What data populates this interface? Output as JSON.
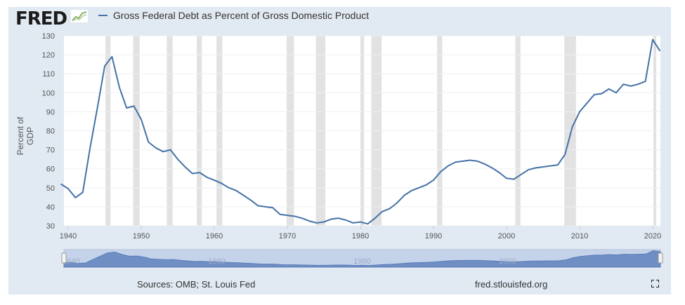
{
  "header": {
    "logo": "FRED",
    "legend_label": "Gross Federal Debt as Percent of Gross Domestic Product"
  },
  "footer": {
    "sources": "Sources: OMB; St. Louis Fed",
    "site": "fred.stlouisfed.org"
  },
  "colors": {
    "line": "#4572a7",
    "recession": "#e2e2e2",
    "panel": "#e1e9f2",
    "navigator": "#6f8fc4"
  },
  "chart_data": {
    "type": "line",
    "title": "Gross Federal Debt as Percent of Gross Domestic Product",
    "xlabel": "",
    "ylabel": "Percent of GDP",
    "xlim": [
      1939,
      2021
    ],
    "ylim": [
      30,
      130
    ],
    "yticks": [
      30,
      40,
      50,
      60,
      70,
      80,
      90,
      100,
      110,
      120,
      130
    ],
    "xticks": [
      1940,
      1950,
      1960,
      1970,
      1980,
      1990,
      2000,
      2010,
      2020
    ],
    "navigator_ticks": [
      1940,
      1960,
      1980,
      2000
    ],
    "grid": true,
    "legend_position": "top-left",
    "series": [
      {
        "name": "Gross Federal Debt as Percent of Gross Domestic Product",
        "x": [
          1939,
          1940,
          1941,
          1942,
          1943,
          1944,
          1945,
          1946,
          1947,
          1948,
          1949,
          1950,
          1951,
          1952,
          1953,
          1954,
          1955,
          1956,
          1957,
          1958,
          1959,
          1960,
          1961,
          1962,
          1963,
          1964,
          1965,
          1966,
          1967,
          1968,
          1969,
          1970,
          1971,
          1972,
          1973,
          1974,
          1975,
          1976,
          1977,
          1978,
          1979,
          1980,
          1981,
          1982,
          1983,
          1984,
          1985,
          1986,
          1987,
          1988,
          1989,
          1990,
          1991,
          1992,
          1993,
          1994,
          1995,
          1996,
          1997,
          1998,
          1999,
          2000,
          2001,
          2002,
          2003,
          2004,
          2005,
          2006,
          2007,
          2008,
          2009,
          2010,
          2011,
          2012,
          2013,
          2014,
          2015,
          2016,
          2017,
          2018,
          2019,
          2020,
          2021
        ],
        "values": [
          52,
          49.5,
          44.8,
          47.6,
          71,
          92,
          114,
          119,
          103,
          92,
          93,
          86,
          74,
          71,
          69,
          70,
          65,
          61,
          57.5,
          58,
          55.5,
          54,
          52.3,
          50,
          48.5,
          46,
          43.5,
          40.5,
          40,
          39.5,
          36,
          35.5,
          35,
          34,
          32.5,
          31.5,
          32,
          33.5,
          34,
          33,
          31.5,
          32,
          31,
          34,
          37.5,
          39,
          42,
          46,
          48.5,
          50,
          51.5,
          54,
          58.5,
          61.5,
          63.5,
          64,
          64.5,
          64,
          62.5,
          60.5,
          58,
          55,
          54.5,
          57,
          59.5,
          60.5,
          61,
          61.5,
          62,
          67.5,
          82,
          90,
          94.5,
          99,
          99.5,
          102,
          100,
          104.5,
          103.5,
          104.5,
          106,
          128,
          122
        ]
      }
    ],
    "recessions": [
      [
        1945.1,
        1945.8
      ],
      [
        1948.9,
        1949.8
      ],
      [
        1953.5,
        1954.3
      ],
      [
        1957.6,
        1958.3
      ],
      [
        1960.3,
        1961.1
      ],
      [
        1969.9,
        1970.9
      ],
      [
        1973.9,
        1975.2
      ],
      [
        1980.0,
        1980.5
      ],
      [
        1981.5,
        1982.9
      ],
      [
        1990.5,
        1991.2
      ],
      [
        2001.2,
        2001.9
      ],
      [
        2007.9,
        2009.5
      ],
      [
        2020.1,
        2020.4
      ]
    ]
  }
}
